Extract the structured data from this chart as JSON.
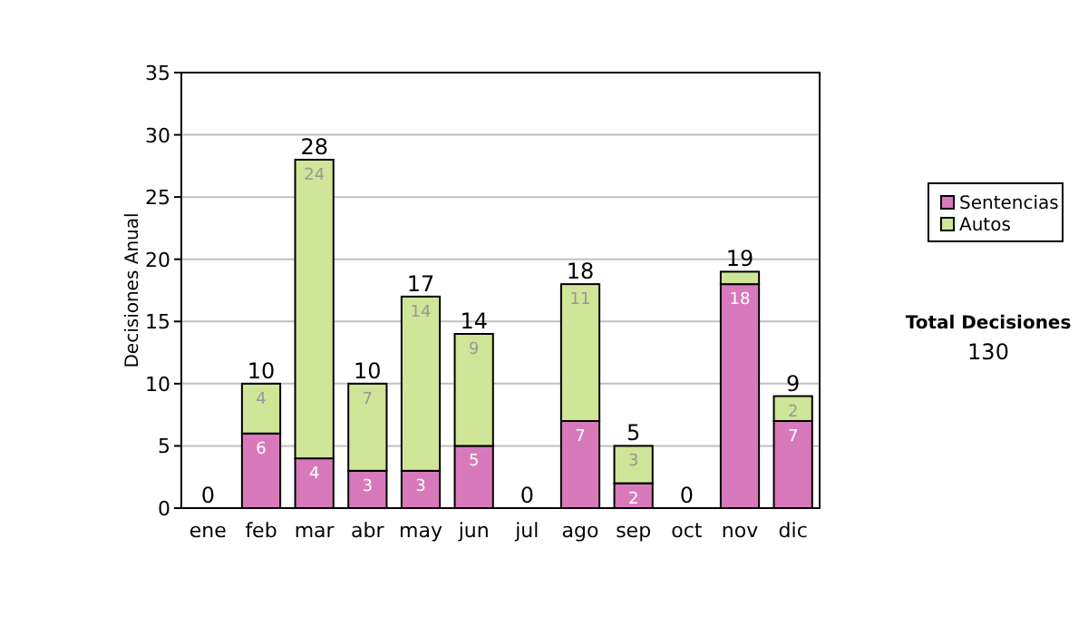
{
  "chart_data": {
    "type": "bar",
    "stacked": true,
    "ylabel": "Decisiones Anual",
    "categories": [
      "ene",
      "feb",
      "mar",
      "abr",
      "may",
      "jun",
      "jul",
      "ago",
      "sep",
      "oct",
      "nov",
      "dic"
    ],
    "series": [
      {
        "name": "Sentencias",
        "color": "#d879bb",
        "values": [
          0,
          6,
          4,
          3,
          3,
          5,
          0,
          7,
          2,
          0,
          18,
          7
        ],
        "value_labels": [
          null,
          "6",
          "4",
          "3",
          "3",
          "5",
          null,
          "7",
          "2",
          null,
          "18",
          "7"
        ]
      },
      {
        "name": "Autos",
        "color": "#cfe597",
        "values": [
          0,
          4,
          24,
          7,
          14,
          9,
          0,
          11,
          3,
          0,
          1,
          2
        ],
        "value_labels": [
          null,
          "4",
          "24",
          "7",
          "14",
          "9",
          null,
          "11",
          "3",
          null,
          null,
          "2"
        ]
      }
    ],
    "totals": [
      "0",
      "10",
      "28",
      "10",
      "17",
      "14",
      "0",
      "18",
      "5",
      "0",
      "19",
      "9"
    ],
    "ylim": [
      0,
      35
    ],
    "yticks": [
      0,
      5,
      10,
      15,
      20,
      25,
      30,
      35
    ],
    "grid": "y",
    "legend": "right",
    "annotations": [
      "Total Decisiones",
      "130"
    ]
  }
}
